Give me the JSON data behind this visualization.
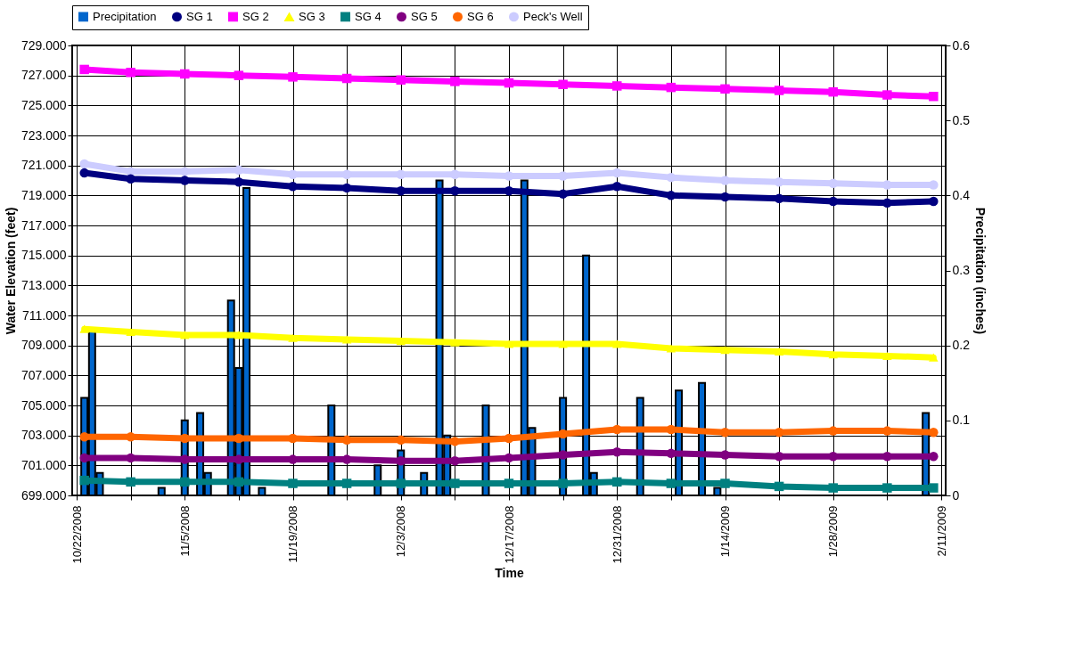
{
  "chart_data": {
    "type": "line",
    "xlabel": "Time",
    "ylabel": "Water Elevation (feet)",
    "y2label": "Precipitation (inches)",
    "x": [
      "2008-10-23",
      "2008-10-29",
      "2008-11-05",
      "2008-11-12",
      "2008-11-19",
      "2008-11-26",
      "2008-12-03",
      "2008-12-10",
      "2008-12-17",
      "2008-12-24",
      "2008-12-31",
      "2009-01-07",
      "2009-01-14",
      "2009-01-21",
      "2009-01-28",
      "2009-02-04",
      "2009-02-10"
    ],
    "xlim": [
      "2008-10-22",
      "2009-02-11"
    ],
    "xticks": [
      {
        "value": "2008-10-22",
        "label": "10/22/2008"
      },
      {
        "value": "2008-10-29",
        "label": null
      },
      {
        "value": "2008-11-05",
        "label": "11/5/2008"
      },
      {
        "value": "2008-11-12",
        "label": null
      },
      {
        "value": "2008-11-19",
        "label": "11/19/2008"
      },
      {
        "value": "2008-11-26",
        "label": null
      },
      {
        "value": "2008-12-03",
        "label": "12/3/2008"
      },
      {
        "value": "2008-12-10",
        "label": null
      },
      {
        "value": "2008-12-17",
        "label": "12/17/2008"
      },
      {
        "value": "2008-12-24",
        "label": null
      },
      {
        "value": "2008-12-31",
        "label": "12/31/2008"
      },
      {
        "value": "2009-01-07",
        "label": null
      },
      {
        "value": "2009-01-14",
        "label": "1/14/2009"
      },
      {
        "value": "2009-01-21",
        "label": null
      },
      {
        "value": "2009-01-28",
        "label": "1/28/2009"
      },
      {
        "value": "2009-02-04",
        "label": null
      },
      {
        "value": "2009-02-11",
        "label": "2/11/2009"
      }
    ],
    "ylim": [
      699,
      729
    ],
    "yticks": [
      {
        "value": 699,
        "label": "699.000"
      },
      {
        "value": 701,
        "label": "701.000"
      },
      {
        "value": 703,
        "label": "703.000"
      },
      {
        "value": 705,
        "label": "705.000"
      },
      {
        "value": 707,
        "label": "707.000"
      },
      {
        "value": 709,
        "label": "709.000"
      },
      {
        "value": 711,
        "label": "711.000"
      },
      {
        "value": 713,
        "label": "713.000"
      },
      {
        "value": 715,
        "label": "715.000"
      },
      {
        "value": 717,
        "label": "717.000"
      },
      {
        "value": 719,
        "label": "719.000"
      },
      {
        "value": 721,
        "label": "721.000"
      },
      {
        "value": 723,
        "label": "723.000"
      },
      {
        "value": 725,
        "label": "725.000"
      },
      {
        "value": 727,
        "label": "727.000"
      },
      {
        "value": 729,
        "label": "729.000"
      }
    ],
    "y2lim": [
      0,
      0.6
    ],
    "y2ticks": [
      0,
      0.1,
      0.2,
      0.3,
      0.4,
      0.5,
      0.6
    ],
    "grid": true,
    "legend": "top",
    "series": [
      {
        "name": "Precipitation",
        "type": "bar",
        "axis": "y2",
        "color": "#0066cc",
        "x": [
          "2008-10-23",
          "2008-10-24",
          "2008-10-25",
          "2008-11-02",
          "2008-11-05",
          "2008-11-07",
          "2008-11-08",
          "2008-11-11",
          "2008-11-12",
          "2008-11-13",
          "2008-11-15",
          "2008-11-24",
          "2008-11-30",
          "2008-12-03",
          "2008-12-06",
          "2008-12-08",
          "2008-12-09",
          "2008-12-14",
          "2008-12-19",
          "2008-12-20",
          "2008-12-24",
          "2008-12-27",
          "2008-12-28",
          "2009-01-03",
          "2009-01-08",
          "2009-01-11",
          "2009-01-13",
          "2009-02-09"
        ],
        "values": [
          0.13,
          0.22,
          0.03,
          0.01,
          0.1,
          0.11,
          0.03,
          0.26,
          0.17,
          0.41,
          0.01,
          0.12,
          0.04,
          0.06,
          0.03,
          0.42,
          0.08,
          0.12,
          0.42,
          0.09,
          0.13,
          0.32,
          0.03,
          0.13,
          0.14,
          0.15,
          0.01,
          0.11
        ]
      },
      {
        "name": "SG 1",
        "color": "#000080",
        "marker": "circle",
        "values": [
          720.5,
          720.1,
          720.0,
          719.9,
          719.6,
          719.5,
          719.3,
          719.3,
          719.3,
          719.1,
          719.6,
          719.0,
          718.9,
          718.8,
          718.6,
          718.5,
          718.6
        ]
      },
      {
        "name": "SG 2",
        "color": "#ff00ff",
        "marker": "square",
        "values": [
          727.4,
          727.2,
          727.1,
          727.0,
          726.9,
          726.8,
          726.7,
          726.6,
          726.5,
          726.4,
          726.3,
          726.2,
          726.1,
          726.0,
          725.9,
          725.7,
          725.6
        ]
      },
      {
        "name": "SG 3",
        "color": "#ffff00",
        "marker": "triangle",
        "values": [
          710.1,
          709.9,
          709.7,
          709.7,
          709.5,
          709.4,
          709.3,
          709.2,
          709.1,
          709.1,
          709.1,
          708.8,
          708.7,
          708.6,
          708.4,
          708.3,
          708.2
        ]
      },
      {
        "name": "SG 4",
        "color": "#008080",
        "marker": "square",
        "values": [
          700.0,
          699.9,
          699.9,
          699.9,
          699.8,
          699.8,
          699.8,
          699.8,
          699.8,
          699.8,
          699.9,
          699.8,
          699.8,
          699.6,
          699.5,
          699.5,
          699.5
        ]
      },
      {
        "name": "SG 5",
        "color": "#800080",
        "marker": "circle",
        "values": [
          701.5,
          701.5,
          701.4,
          701.4,
          701.4,
          701.4,
          701.3,
          701.3,
          701.5,
          701.7,
          701.9,
          701.8,
          701.7,
          701.6,
          701.6,
          701.6,
          701.6
        ]
      },
      {
        "name": "SG 6",
        "color": "#ff6600",
        "marker": "circle",
        "values": [
          702.9,
          702.9,
          702.8,
          702.8,
          702.8,
          702.7,
          702.7,
          702.6,
          702.8,
          703.1,
          703.4,
          703.4,
          703.2,
          703.2,
          703.3,
          703.3,
          703.2
        ]
      },
      {
        "name": "Peck's Well",
        "color": "#ccccff",
        "marker": "circle",
        "values": [
          721.1,
          720.6,
          720.6,
          720.7,
          720.4,
          720.4,
          720.4,
          720.4,
          720.3,
          720.3,
          720.5,
          720.2,
          720.0,
          719.9,
          719.8,
          719.7,
          719.7
        ]
      }
    ]
  }
}
